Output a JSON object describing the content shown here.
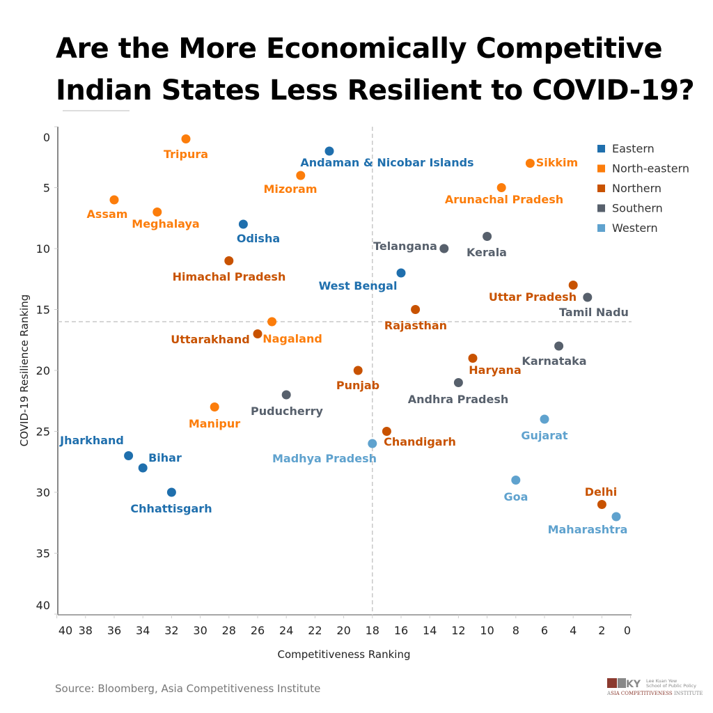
{
  "title": "Are the More Economically Competitive Indian States Less Resilient to COVID-19?",
  "source": "Source: Bloomberg, Asia Competitiveness Institute",
  "logo": {
    "name": "Lee Kuan Yew School of Public Policy",
    "institute": "Asia Competitiveness Institute",
    "mark": "LKY"
  },
  "chart_data": {
    "type": "scatter",
    "xlabel": "Competitiveness Ranking",
    "ylabel": "COVID-19 Resilience Ranking",
    "xlim": [
      40,
      0
    ],
    "ylim": [
      40,
      0
    ],
    "x_reversed": true,
    "y_reversed": true,
    "xticks": [
      40,
      38,
      36,
      34,
      32,
      30,
      28,
      26,
      24,
      22,
      20,
      18,
      16,
      14,
      12,
      10,
      8,
      6,
      4,
      2,
      0
    ],
    "yticks": [
      0,
      5,
      10,
      15,
      20,
      25,
      30,
      35,
      40
    ],
    "reference_lines": {
      "x": 18,
      "y": 16,
      "style": "dashed"
    },
    "grid": false,
    "legend_placement": "top-right",
    "legend": [
      {
        "name": "Eastern",
        "color": "#1f6fad"
      },
      {
        "name": "North-eastern",
        "color": "#fc7d0b"
      },
      {
        "name": "Northern",
        "color": "#c85200"
      },
      {
        "name": "Southern",
        "color": "#57606c"
      },
      {
        "name": "Western",
        "color": "#5fa2ce"
      }
    ],
    "points": [
      {
        "name": "Tripura",
        "region": "North-eastern",
        "x": 31,
        "y": 1
      },
      {
        "name": "Andaman & Nicobar Islands",
        "region": "Eastern",
        "x": 21,
        "y": 2
      },
      {
        "name": "Sikkim",
        "region": "North-eastern",
        "x": 7,
        "y": 3
      },
      {
        "name": "Mizoram",
        "region": "North-eastern",
        "x": 23,
        "y": 4
      },
      {
        "name": "Arunachal Pradesh",
        "region": "North-eastern",
        "x": 9,
        "y": 5
      },
      {
        "name": "Assam",
        "region": "North-eastern",
        "x": 36,
        "y": 6
      },
      {
        "name": "Meghalaya",
        "region": "North-eastern",
        "x": 33,
        "y": 7
      },
      {
        "name": "Odisha",
        "region": "Eastern",
        "x": 27,
        "y": 8
      },
      {
        "name": "Kerala",
        "region": "Southern",
        "x": 10,
        "y": 9
      },
      {
        "name": "Telangana",
        "region": "Southern",
        "x": 13,
        "y": 10
      },
      {
        "name": "Himachal Pradesh",
        "region": "Northern",
        "x": 28,
        "y": 11
      },
      {
        "name": "West Bengal",
        "region": "Eastern",
        "x": 16,
        "y": 12
      },
      {
        "name": "Uttar Pradesh",
        "region": "Northern",
        "x": 4,
        "y": 13
      },
      {
        "name": "Tamil Nadu",
        "region": "Southern",
        "x": 3,
        "y": 14
      },
      {
        "name": "Rajasthan",
        "region": "Northern",
        "x": 15,
        "y": 15
      },
      {
        "name": "Nagaland",
        "region": "North-eastern",
        "x": 25,
        "y": 16
      },
      {
        "name": "Uttarakhand",
        "region": "Northern",
        "x": 26,
        "y": 17
      },
      {
        "name": "Karnataka",
        "region": "Southern",
        "x": 5,
        "y": 18
      },
      {
        "name": "Haryana",
        "region": "Northern",
        "x": 11,
        "y": 19
      },
      {
        "name": "Punjab",
        "region": "Northern",
        "x": 19,
        "y": 20
      },
      {
        "name": "Andhra Pradesh",
        "region": "Southern",
        "x": 12,
        "y": 21
      },
      {
        "name": "Puducherry",
        "region": "Southern",
        "x": 24,
        "y": 22
      },
      {
        "name": "Manipur",
        "region": "North-eastern",
        "x": 29,
        "y": 23
      },
      {
        "name": "Gujarat",
        "region": "Western",
        "x": 6,
        "y": 24
      },
      {
        "name": "Chandigarh",
        "region": "Northern",
        "x": 17,
        "y": 25
      },
      {
        "name": "Madhya Pradesh",
        "region": "Western",
        "x": 18,
        "y": 26
      },
      {
        "name": "Jharkhand",
        "region": "Eastern",
        "x": 35,
        "y": 27
      },
      {
        "name": "Bihar",
        "region": "Eastern",
        "x": 34,
        "y": 28
      },
      {
        "name": "Goa",
        "region": "Western",
        "x": 8,
        "y": 29
      },
      {
        "name": "Chhattisgarh",
        "region": "Eastern",
        "x": 32,
        "y": 30
      },
      {
        "name": "Delhi",
        "region": "Northern",
        "x": 2,
        "y": 31
      },
      {
        "name": "Maharashtra",
        "region": "Western",
        "x": 1,
        "y": 32
      }
    ]
  }
}
